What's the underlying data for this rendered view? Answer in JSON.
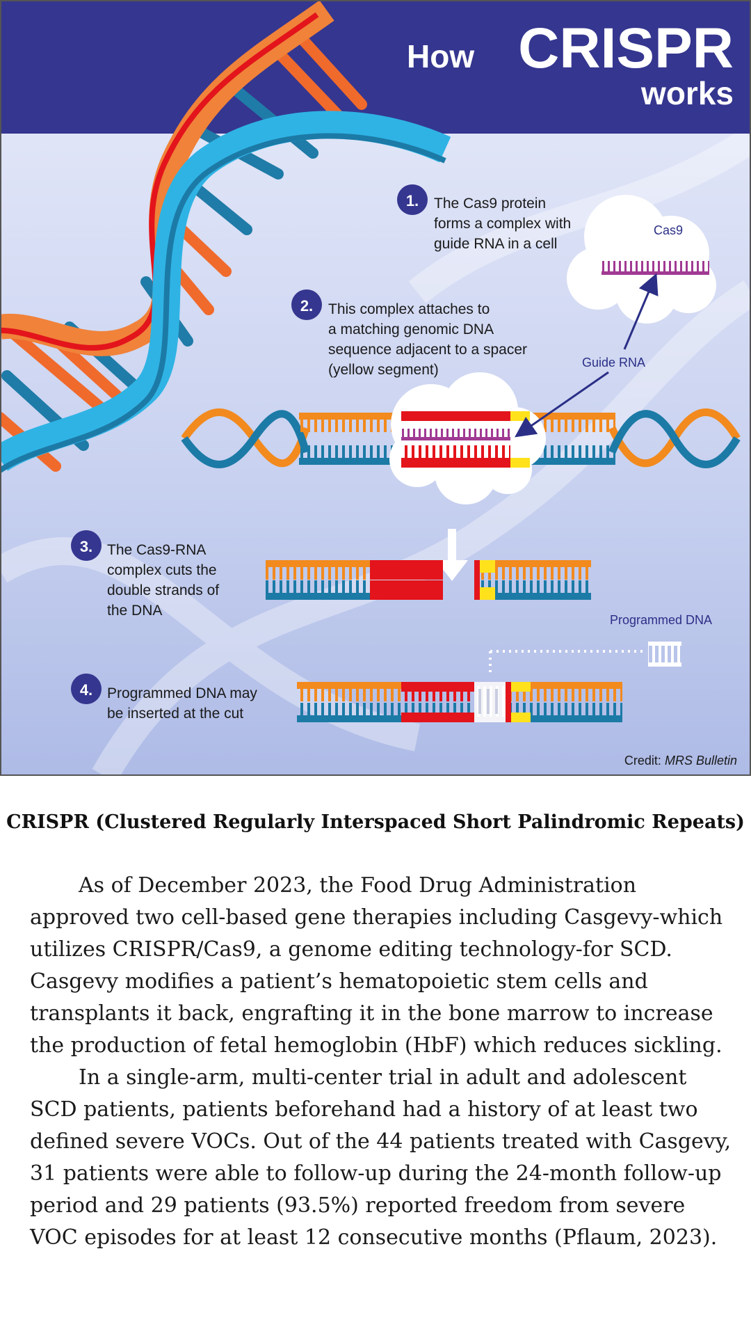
{
  "infographic": {
    "title_how": "How",
    "title_crispr": "CRISPR",
    "title_works": "works",
    "steps": [
      {
        "number": "1.",
        "lines": [
          "The Cas9 protein",
          "forms a complex with",
          "guide RNA in a cell"
        ]
      },
      {
        "number": "2.",
        "lines": [
          "This complex attaches to",
          "a matching genomic DNA",
          "sequence adjacent to a spacer",
          "(yellow segment)"
        ]
      },
      {
        "number": "3.",
        "lines": [
          "The Cas9-RNA",
          "complex cuts the",
          "double strands of",
          "the DNA"
        ]
      },
      {
        "number": "4.",
        "lines": [
          "Programmed DNA may",
          "be inserted at the cut"
        ]
      }
    ],
    "labels": {
      "cas9": "Cas9",
      "guide_rna": "Guide RNA",
      "programmed_dna": "Programmed DNA",
      "credit_prefix": "Credit: ",
      "credit_source": "MRS Bulletin"
    },
    "colors": {
      "banner": "#35368f",
      "orange": "#f28a1e",
      "teal": "#1c7aa6",
      "red": "#e3141b",
      "yellow": "#ffe21c",
      "purple": "#a03a93",
      "light_blue": "#2fb3e4"
    }
  },
  "caption": "CRISPR (Clustered Regularly Interspaced Short Palindromic Repeats)",
  "paragraphs": [
    "As of December 2023, the Food Drug Administration approved two cell-based gene therapies including Casgevy-which utilizes CRISPR/Cas9, a genome editing technology-for SCD. Casgevy modifies a patient’s hematopoietic stem cells and transplants it back, engrafting it in the bone marrow to increase the production of fetal hemoglobin (HbF) which reduces sickling.",
    "In a single-arm, multi-center trial in adult and adolescent SCD patients, patients beforehand had a history of at least two defined severe VOCs. Out of the 44 patients treated with Casgevy, 31 patients were able to follow-up during the 24-month follow-up period and 29 patients (93.5%) reported freedom from severe VOC episodes for at least 12 consecutive months (Pflaum, 2023)."
  ]
}
